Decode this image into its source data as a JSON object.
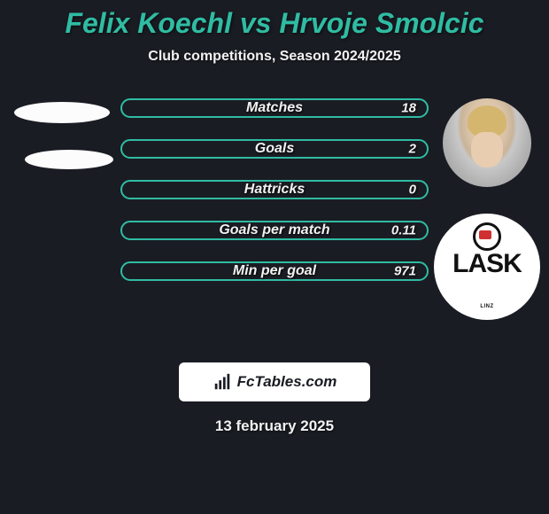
{
  "title": {
    "text": "Felix Koechl vs Hrvoje Smolcic",
    "color": "#2fbca3",
    "fontsize": 32
  },
  "subtitle": {
    "text": "Club competitions, Season 2024/2025",
    "color": "#f2f2f2",
    "fontsize": 16
  },
  "stats": {
    "border_color": "#2fbca3",
    "label_color": "#f2f2f2",
    "value_color": "#f2f2f2",
    "label_fontsize": 16,
    "value_fontsize": 15,
    "rows": [
      {
        "label": "Matches",
        "value": "18"
      },
      {
        "label": "Goals",
        "value": "2"
      },
      {
        "label": "Hattricks",
        "value": "0"
      },
      {
        "label": "Goals per match",
        "value": "0.11"
      },
      {
        "label": "Min per goal",
        "value": "971"
      }
    ]
  },
  "club": {
    "name": "LASK",
    "sub": "LINZ"
  },
  "watermark": {
    "text": "FcTables.com",
    "bg": "#ffffff",
    "color": "#1a1c23",
    "fontsize": 17
  },
  "date": {
    "text": "13 february 2025",
    "color": "#f2f2f2",
    "fontsize": 17
  }
}
